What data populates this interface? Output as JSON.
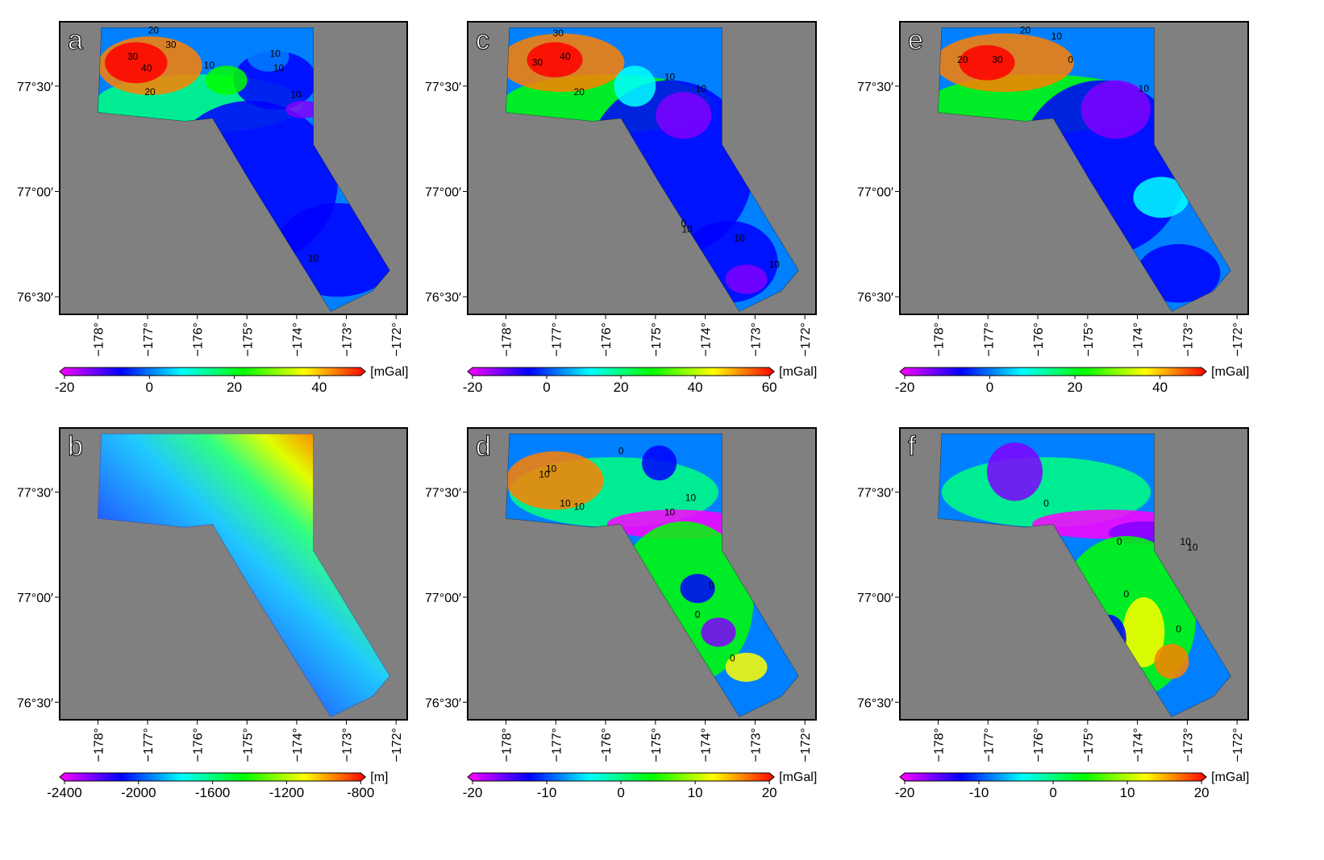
{
  "panels": [
    {
      "id": "a",
      "label": "a",
      "unit": "[mGal]",
      "ticks": [
        "-20",
        "0",
        "20",
        "40"
      ],
      "contours": [
        "20",
        "30",
        "30",
        "40",
        "20",
        "10",
        "10",
        "10",
        "10",
        "10"
      ]
    },
    {
      "id": "b",
      "label": "b",
      "unit": "[m]",
      "ticks": [
        "-2400",
        "-2000",
        "-1600",
        "-1200",
        "-800"
      ],
      "contours": []
    },
    {
      "id": "c",
      "label": "c",
      "unit": "[mGal]",
      "ticks": [
        "-20",
        "0",
        "20",
        "40",
        "60"
      ],
      "contours": [
        "30",
        "40",
        "30",
        "20",
        "10",
        "10",
        "10",
        "0",
        "10",
        "10"
      ]
    },
    {
      "id": "d",
      "label": "d",
      "unit": "[mGal]",
      "ticks": [
        "-20",
        "-10",
        "0",
        "10",
        "20"
      ],
      "contours": [
        "10",
        "10",
        "10",
        "10",
        "0",
        "10",
        "10",
        "0",
        "0",
        "0"
      ]
    },
    {
      "id": "e",
      "label": "e",
      "unit": "[mGal]",
      "ticks": [
        "-20",
        "0",
        "20",
        "40"
      ],
      "contours": [
        "20",
        "30",
        "10",
        "0",
        "20",
        "10"
      ]
    },
    {
      "id": "f",
      "label": "f",
      "unit": "[mGal]",
      "ticks": [
        "-20",
        "-10",
        "0",
        "10",
        "20"
      ],
      "contours": [
        "0",
        "10",
        "10",
        "0",
        "0",
        "0"
      ]
    }
  ],
  "lat_labels": [
    "77°30′",
    "77°00′",
    "76°30′"
  ],
  "lon_labels": [
    "−178°",
    "−177°",
    "−176°",
    "−175°",
    "−174°",
    "−173°",
    "−172°"
  ],
  "colormap": [
    "#ff00ff",
    "#8000ff",
    "#0000ff",
    "#0080ff",
    "#00ffff",
    "#00ff80",
    "#00ff00",
    "#80ff00",
    "#ffff00",
    "#ff8000",
    "#ff0000"
  ],
  "ocean_color": "#808080"
}
